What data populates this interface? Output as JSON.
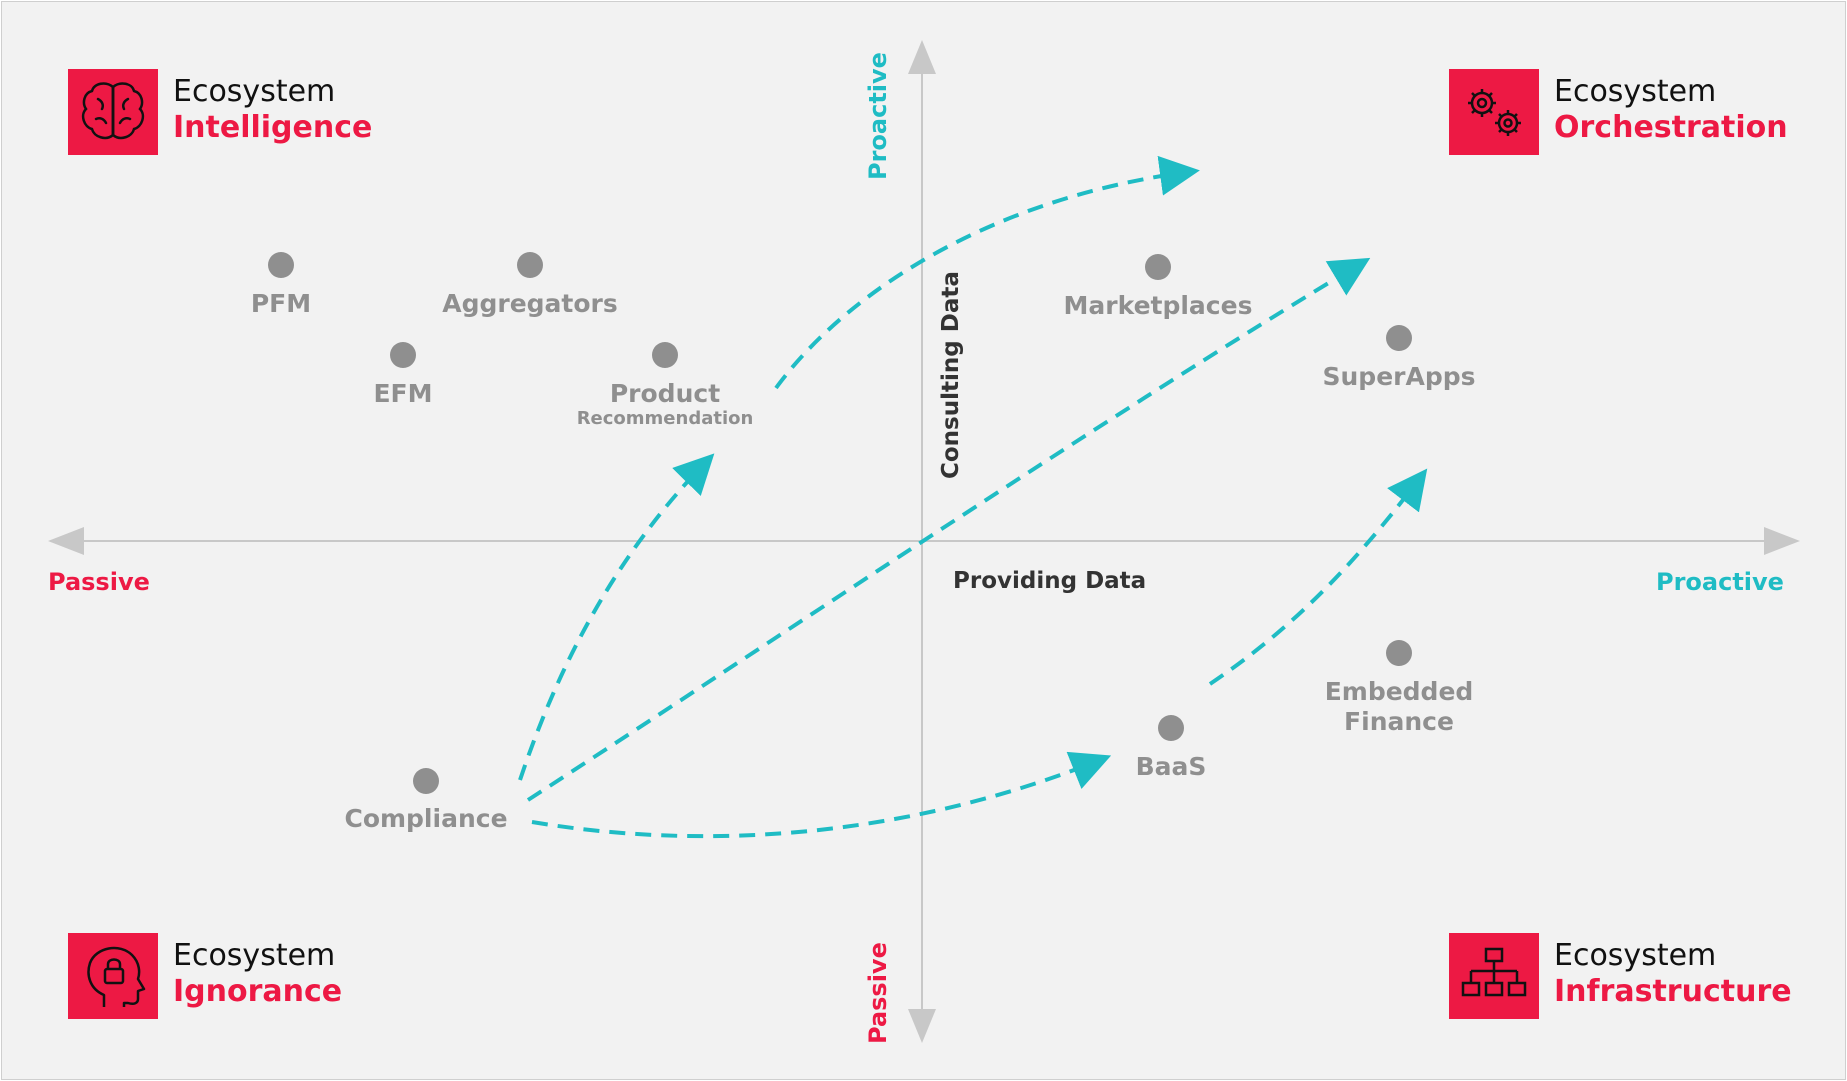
{
  "colors": {
    "accent": "#ed1944",
    "teal": "#1fbcc4",
    "point": "#8f8f8f",
    "axis": "#c8c8c8",
    "dark": "#333333"
  },
  "quadrants": {
    "top_left": {
      "line1": "Ecosystem",
      "line2": "Intelligence",
      "icon": "brain-icon"
    },
    "top_right": {
      "line1": "Ecosystem",
      "line2": "Orchestration",
      "icon": "gears-icon"
    },
    "bottom_left": {
      "line1": "Ecosystem",
      "line2": "Ignorance",
      "icon": "head-lock-icon"
    },
    "bottom_right": {
      "line1": "Ecosystem",
      "line2": "Infrastructure",
      "icon": "hierarchy-icon"
    }
  },
  "axes": {
    "x_left": "Passive",
    "x_right": "Proactive",
    "x_name": "Providing Data",
    "y_top": "Proactive",
    "y_bottom": "Passive",
    "y_name": "Consulting Data"
  },
  "points": [
    {
      "label": "PFM"
    },
    {
      "label": "Aggregators"
    },
    {
      "label": "EFM"
    },
    {
      "label": "Product",
      "sub": "Recommendation"
    },
    {
      "label": "Marketplaces"
    },
    {
      "label": "SuperApps"
    },
    {
      "label": "Compliance"
    },
    {
      "label": "BaaS"
    },
    {
      "label": "Embedded",
      "line2": "Finance"
    }
  ]
}
